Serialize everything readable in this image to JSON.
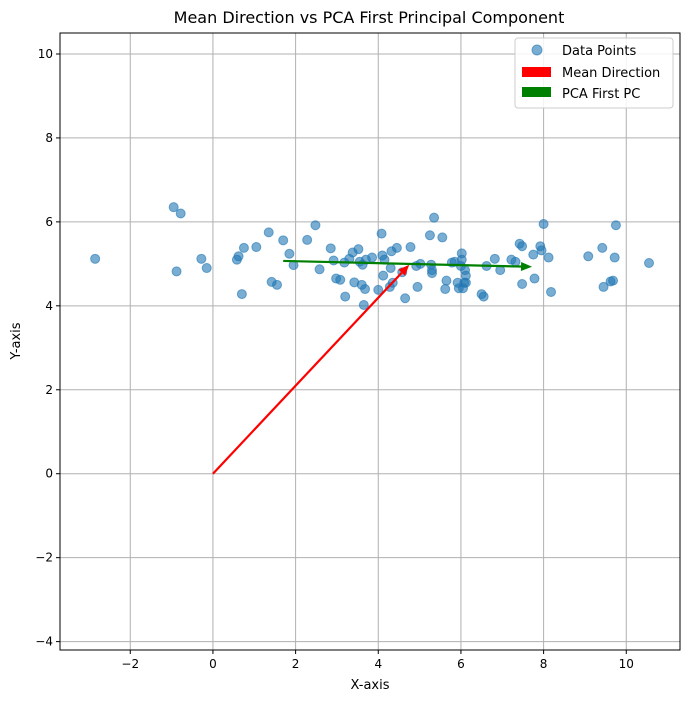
{
  "chart_data": {
    "type": "scatter",
    "title": "Mean Direction vs PCA First Principal Component",
    "xlabel": "X-axis",
    "ylabel": "Y-axis",
    "xlim": [
      -3.7,
      11.3
    ],
    "ylim": [
      -4.2,
      10.5
    ],
    "x_ticks": [
      -2,
      0,
      2,
      4,
      6,
      8,
      10
    ],
    "y_ticks": [
      -4,
      -2,
      0,
      2,
      4,
      6,
      8,
      10
    ],
    "grid": true,
    "legend_position": "top-right",
    "legend": [
      {
        "label": "Data Points",
        "marker": "circle",
        "color": "#1f77b4"
      },
      {
        "label": "Mean Direction",
        "marker": "rect",
        "color": "#ff0000"
      },
      {
        "label": "PCA First PC",
        "marker": "rect",
        "color": "#008000"
      }
    ],
    "points": [
      [
        -2.85,
        5.12
      ],
      [
        -0.95,
        6.35
      ],
      [
        -0.78,
        6.2
      ],
      [
        -0.88,
        4.82
      ],
      [
        -0.28,
        5.12
      ],
      [
        -0.15,
        4.9
      ],
      [
        0.58,
        5.1
      ],
      [
        0.62,
        5.18
      ],
      [
        0.7,
        4.28
      ],
      [
        0.75,
        5.38
      ],
      [
        1.05,
        5.4
      ],
      [
        1.35,
        5.75
      ],
      [
        1.42,
        4.57
      ],
      [
        1.55,
        4.5
      ],
      [
        1.7,
        5.56
      ],
      [
        1.85,
        5.24
      ],
      [
        1.95,
        4.97
      ],
      [
        2.28,
        5.57
      ],
      [
        2.48,
        5.92
      ],
      [
        2.58,
        4.87
      ],
      [
        2.85,
        5.37
      ],
      [
        2.92,
        5.08
      ],
      [
        2.98,
        4.65
      ],
      [
        3.08,
        4.62
      ],
      [
        3.18,
        5.03
      ],
      [
        3.2,
        4.22
      ],
      [
        3.3,
        5.12
      ],
      [
        3.38,
        5.27
      ],
      [
        3.42,
        4.56
      ],
      [
        3.52,
        5.35
      ],
      [
        3.55,
        5.05
      ],
      [
        3.6,
        4.5
      ],
      [
        3.62,
        4.98
      ],
      [
        3.65,
        4.02
      ],
      [
        3.68,
        4.4
      ],
      [
        3.7,
        5.1
      ],
      [
        3.85,
        5.15
      ],
      [
        4.0,
        4.38
      ],
      [
        4.08,
        5.72
      ],
      [
        4.1,
        5.2
      ],
      [
        4.12,
        4.72
      ],
      [
        4.15,
        5.1
      ],
      [
        4.28,
        4.45
      ],
      [
        4.3,
        4.9
      ],
      [
        4.32,
        5.3
      ],
      [
        4.35,
        4.55
      ],
      [
        4.45,
        5.38
      ],
      [
        4.58,
        4.8
      ],
      [
        4.65,
        4.18
      ],
      [
        4.78,
        5.4
      ],
      [
        4.92,
        4.95
      ],
      [
        4.95,
        4.45
      ],
      [
        5.02,
        5.0
      ],
      [
        5.25,
        5.68
      ],
      [
        5.28,
        4.98
      ],
      [
        5.3,
        4.78
      ],
      [
        5.3,
        4.85
      ],
      [
        5.35,
        6.1
      ],
      [
        5.55,
        5.63
      ],
      [
        5.62,
        4.4
      ],
      [
        5.65,
        4.6
      ],
      [
        5.78,
        5.03
      ],
      [
        5.85,
        5.05
      ],
      [
        5.92,
        4.55
      ],
      [
        5.95,
        4.42
      ],
      [
        6.0,
        4.95
      ],
      [
        6.02,
        5.1
      ],
      [
        6.02,
        5.25
      ],
      [
        6.05,
        4.42
      ],
      [
        6.08,
        4.55
      ],
      [
        6.1,
        4.85
      ],
      [
        6.12,
        4.72
      ],
      [
        6.12,
        4.55
      ],
      [
        6.5,
        4.28
      ],
      [
        6.55,
        4.22
      ],
      [
        6.62,
        4.95
      ],
      [
        6.82,
        5.12
      ],
      [
        6.95,
        4.85
      ],
      [
        7.22,
        5.1
      ],
      [
        7.32,
        5.05
      ],
      [
        7.42,
        5.48
      ],
      [
        7.48,
        5.42
      ],
      [
        7.48,
        4.52
      ],
      [
        7.75,
        5.22
      ],
      [
        7.78,
        4.65
      ],
      [
        7.92,
        5.42
      ],
      [
        7.95,
        5.32
      ],
      [
        8.0,
        5.95
      ],
      [
        8.12,
        5.15
      ],
      [
        8.18,
        4.33
      ],
      [
        9.08,
        5.18
      ],
      [
        9.42,
        5.38
      ],
      [
        9.45,
        4.45
      ],
      [
        9.62,
        4.58
      ],
      [
        9.68,
        4.6
      ],
      [
        9.72,
        5.15
      ],
      [
        9.75,
        5.92
      ],
      [
        10.55,
        5.02
      ]
    ],
    "mean_direction": {
      "from": [
        0,
        0
      ],
      "to": [
        4.75,
        4.98
      ]
    },
    "pca_first_pc": {
      "from": [
        1.7,
        5.07
      ],
      "to": [
        7.72,
        4.93
      ]
    }
  }
}
